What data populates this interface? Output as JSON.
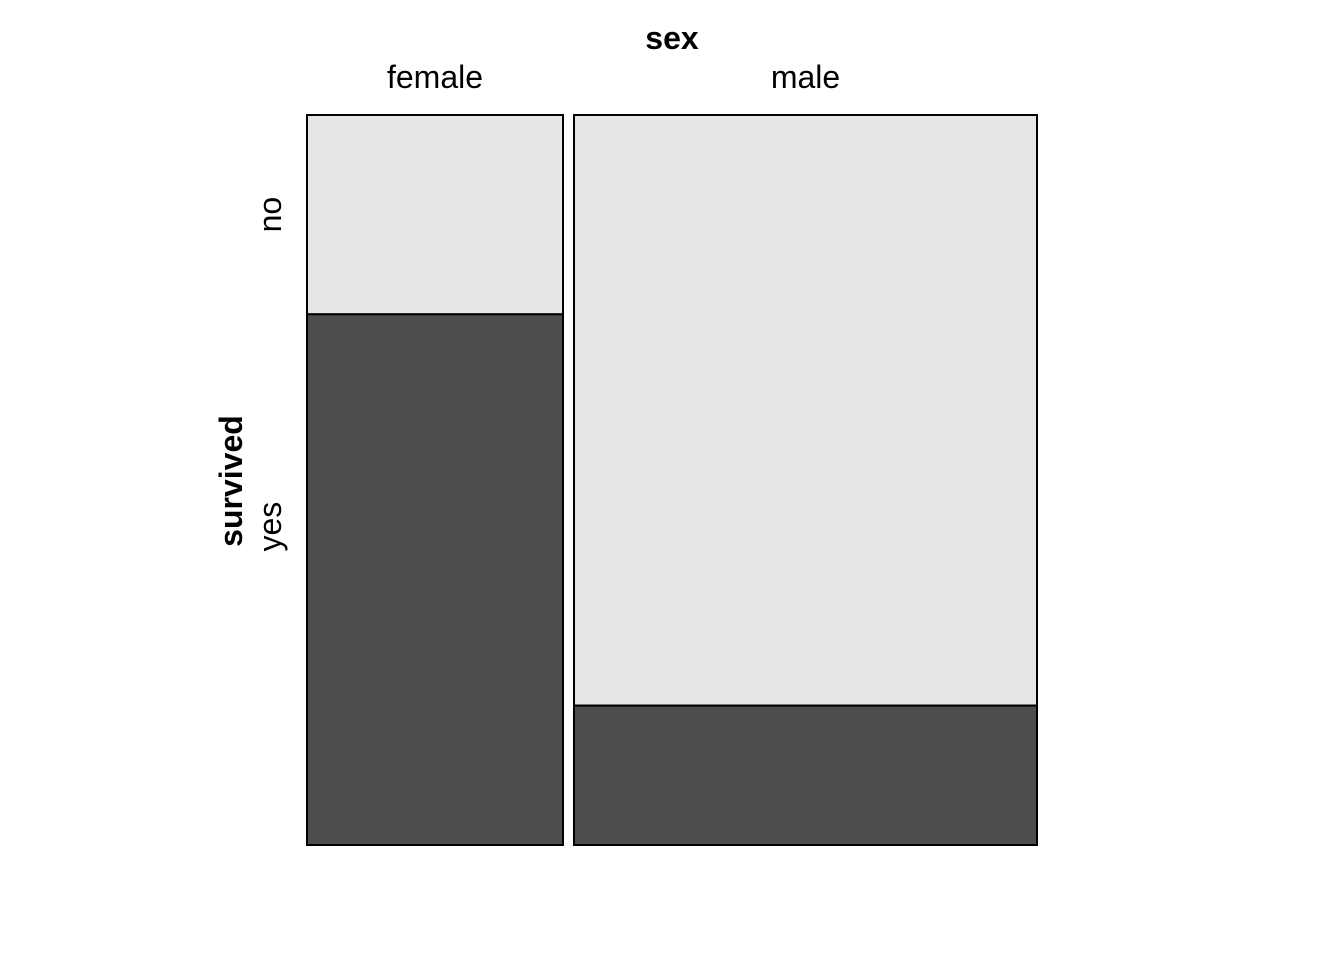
{
  "chart_data": {
    "type": "mosaic",
    "x_variable": "sex",
    "y_variable": "survived",
    "x_levels": [
      "female",
      "male"
    ],
    "y_levels": [
      "no",
      "yes"
    ],
    "column_widths": [
      0.356,
      0.644
    ],
    "proportions": {
      "female": {
        "no": 0.273,
        "yes": 0.727
      },
      "male": {
        "no": 0.809,
        "yes": 0.191
      }
    },
    "colors": {
      "no": "#e6e6e6",
      "yes": "#4d4d4d",
      "border": "#000000"
    },
    "grid": false,
    "legend": "none"
  }
}
